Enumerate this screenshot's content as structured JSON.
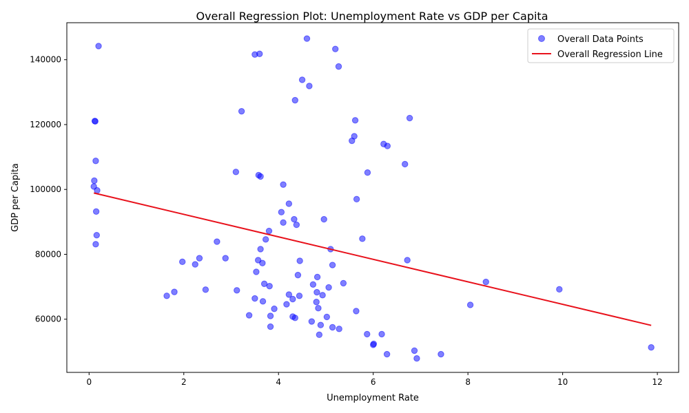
{
  "chart_data": {
    "type": "scatter",
    "title": "Overall Regression Plot: Unemployment Rate vs GDP per Capita",
    "xlabel": "Unemployment Rate",
    "ylabel": "GDP per Capita",
    "xlim": [
      -0.47,
      12.45
    ],
    "ylim": [
      43600,
      151400
    ],
    "xticks": [
      0,
      2,
      4,
      6,
      8,
      10,
      12
    ],
    "xtick_labels": [
      "0",
      "2",
      "4",
      "6",
      "8",
      "10",
      "12"
    ],
    "yticks": [
      60000,
      80000,
      100000,
      120000,
      140000
    ],
    "ytick_labels": [
      "60000",
      "80000",
      "100000",
      "120000",
      "140000"
    ],
    "grid": false,
    "legend_position": "top-right",
    "colors": {
      "points": "#0000ff",
      "line": "#e8111b"
    },
    "series": [
      {
        "name": "Overall Data Points",
        "kind": "scatter",
        "points": [
          [
            0.2,
            144200
          ],
          [
            4.6,
            146500
          ],
          [
            5.2,
            143300
          ],
          [
            3.5,
            141600
          ],
          [
            3.6,
            141800
          ],
          [
            5.27,
            137900
          ],
          [
            4.5,
            133800
          ],
          [
            4.65,
            131900
          ],
          [
            4.35,
            127500
          ],
          [
            3.22,
            124100
          ],
          [
            0.12,
            121100
          ],
          [
            0.13,
            121000
          ],
          [
            5.62,
            121300
          ],
          [
            6.77,
            122000
          ],
          [
            5.6,
            116400
          ],
          [
            5.55,
            115000
          ],
          [
            6.22,
            114000
          ],
          [
            6.3,
            113400
          ],
          [
            0.14,
            108800
          ],
          [
            6.67,
            107800
          ],
          [
            3.1,
            105400
          ],
          [
            3.58,
            104400
          ],
          [
            3.62,
            104000
          ],
          [
            5.88,
            105200
          ],
          [
            0.11,
            102700
          ],
          [
            4.1,
            101500
          ],
          [
            0.1,
            100900
          ],
          [
            0.17,
            99700
          ],
          [
            5.65,
            97000
          ],
          [
            4.22,
            95600
          ],
          [
            0.15,
            93200
          ],
          [
            4.06,
            93000
          ],
          [
            4.33,
            90800
          ],
          [
            4.96,
            90800
          ],
          [
            4.1,
            89800
          ],
          [
            4.38,
            89100
          ],
          [
            3.8,
            87200
          ],
          [
            0.16,
            85900
          ],
          [
            3.73,
            84600
          ],
          [
            5.77,
            84800
          ],
          [
            2.7,
            83900
          ],
          [
            0.14,
            83100
          ],
          [
            3.62,
            81600
          ],
          [
            5.1,
            81600
          ],
          [
            2.33,
            78800
          ],
          [
            2.88,
            78800
          ],
          [
            3.57,
            78200
          ],
          [
            1.97,
            77700
          ],
          [
            3.66,
            77300
          ],
          [
            4.45,
            78000
          ],
          [
            6.72,
            78200
          ],
          [
            2.24,
            76900
          ],
          [
            5.14,
            76700
          ],
          [
            3.53,
            74600
          ],
          [
            4.41,
            73600
          ],
          [
            4.82,
            73000
          ],
          [
            3.7,
            70900
          ],
          [
            3.81,
            70200
          ],
          [
            4.73,
            70700
          ],
          [
            5.06,
            69800
          ],
          [
            5.37,
            71100
          ],
          [
            8.38,
            71500
          ],
          [
            2.46,
            69100
          ],
          [
            3.12,
            68900
          ],
          [
            1.8,
            68400
          ],
          [
            4.81,
            68300
          ],
          [
            4.22,
            67600
          ],
          [
            4.44,
            67200
          ],
          [
            4.93,
            67400
          ],
          [
            1.64,
            67200
          ],
          [
            3.5,
            66400
          ],
          [
            4.3,
            66200
          ],
          [
            3.67,
            65500
          ],
          [
            4.8,
            65300
          ],
          [
            4.17,
            64600
          ],
          [
            8.05,
            64400
          ],
          [
            9.93,
            69200
          ],
          [
            3.91,
            63200
          ],
          [
            4.84,
            63400
          ],
          [
            5.64,
            62500
          ],
          [
            3.38,
            61200
          ],
          [
            3.83,
            61000
          ],
          [
            4.3,
            60800
          ],
          [
            4.35,
            60400
          ],
          [
            5.02,
            60700
          ],
          [
            4.7,
            59300
          ],
          [
            4.89,
            58200
          ],
          [
            3.83,
            57700
          ],
          [
            5.14,
            57500
          ],
          [
            5.28,
            57000
          ],
          [
            4.86,
            55200
          ],
          [
            5.87,
            55400
          ],
          [
            6.18,
            55400
          ],
          [
            6.01,
            52400
          ],
          [
            6.0,
            52100
          ],
          [
            11.87,
            51300
          ],
          [
            6.87,
            50300
          ],
          [
            6.29,
            49200
          ],
          [
            7.43,
            49200
          ],
          [
            6.92,
            47900
          ]
        ]
      },
      {
        "name": "Overall Regression Line",
        "kind": "line",
        "points": [
          [
            0.1,
            98900
          ],
          [
            11.87,
            58100
          ]
        ]
      }
    ]
  }
}
